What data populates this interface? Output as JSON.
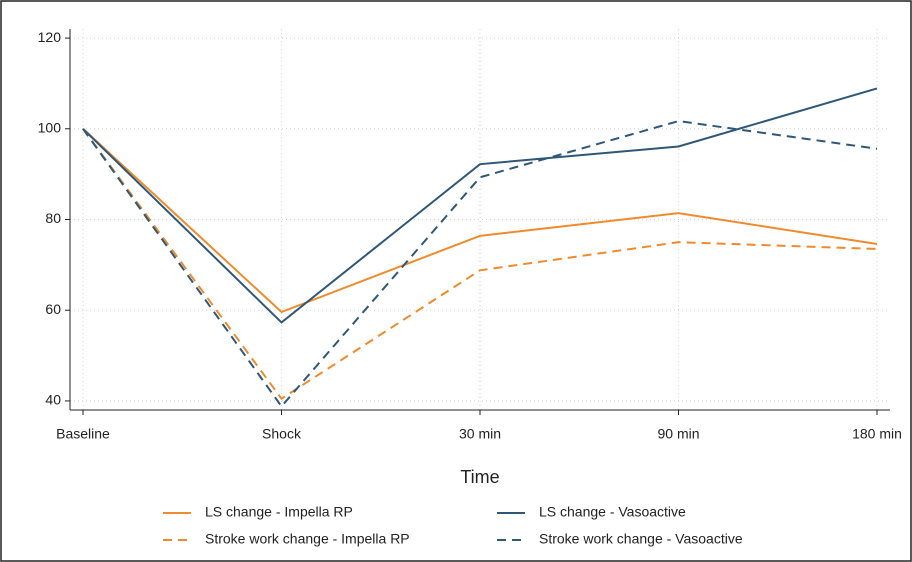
{
  "chart_data": {
    "type": "line",
    "x_label": "Time",
    "categories": [
      "Baseline",
      "Shock",
      "30 min",
      "90 min",
      "180 min"
    ],
    "series": [
      {
        "name": "LS change - Impella RP",
        "color": "#ef8b2c",
        "dash": "solid",
        "values": [
          100,
          59.6,
          76.4,
          81.4,
          74.6
        ]
      },
      {
        "name": "LS change - Vasoactive",
        "color": "#2e5778",
        "dash": "solid",
        "values": [
          100,
          57.3,
          92.2,
          96.1,
          108.9
        ]
      },
      {
        "name": "Stroke work change - Impella RP",
        "color": "#ef8b2c",
        "dash": "dashed",
        "values": [
          100,
          40.5,
          68.8,
          75,
          73.5
        ]
      },
      {
        "name": "Stroke work change - Vasoactive",
        "color": "#2e5778",
        "dash": "dashed",
        "values": [
          100,
          38.8,
          89.3,
          101.7,
          95.6
        ]
      }
    ],
    "ylim": [
      38,
      122
    ],
    "yticks": [
      40,
      60,
      80,
      100,
      120
    ],
    "grid": true,
    "legend": "bottom"
  }
}
